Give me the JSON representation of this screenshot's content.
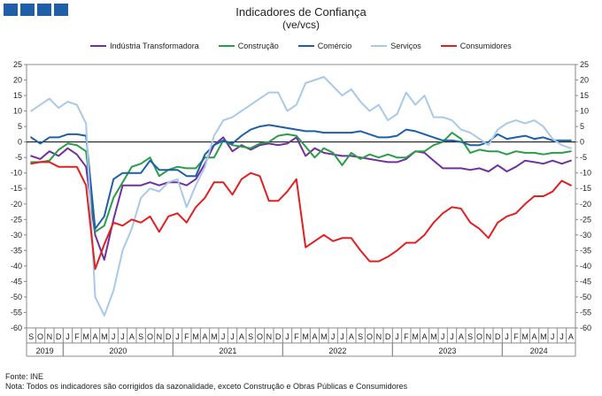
{
  "header": {
    "logo_icon": "ine-logo-blocks"
  },
  "chart_data": {
    "type": "line",
    "title": "Indicadores de Confiança",
    "subtitle": "(ve/vcs)",
    "ylim": [
      -60,
      25
    ],
    "yticks": [
      25,
      20,
      15,
      10,
      5,
      0,
      -5,
      -10,
      -15,
      -20,
      -25,
      -30,
      -35,
      -40,
      -45,
      -50,
      -55,
      -60
    ],
    "month_labels": [
      "S",
      "O",
      "N",
      "D",
      "J",
      "F",
      "M",
      "A",
      "M",
      "J",
      "J",
      "A",
      "S",
      "O",
      "N",
      "D",
      "J",
      "F",
      "M",
      "A",
      "M",
      "J",
      "J",
      "A",
      "S",
      "O",
      "N",
      "D",
      "J",
      "F",
      "M",
      "A",
      "M",
      "J",
      "J",
      "A",
      "S",
      "O",
      "N",
      "D",
      "J",
      "F",
      "M",
      "A",
      "M",
      "J",
      "J",
      "A",
      "S",
      "O",
      "N",
      "D",
      "J",
      "F",
      "M",
      "A",
      "M",
      "J",
      "J",
      "A"
    ],
    "years": [
      {
        "label": "2019",
        "start": 0,
        "count": 4
      },
      {
        "label": "2020",
        "start": 4,
        "count": 12
      },
      {
        "label": "2021",
        "start": 16,
        "count": 12
      },
      {
        "label": "2022",
        "start": 28,
        "count": 12
      },
      {
        "label": "2023",
        "start": 40,
        "count": 12
      },
      {
        "label": "2024",
        "start": 52,
        "count": 8
      }
    ],
    "series": [
      {
        "name": "Indústria Transformadora",
        "color": "#7030a0",
        "values": [
          -4.5,
          -5.5,
          -3,
          -4.5,
          -2,
          -4,
          -8,
          -30,
          -38,
          -25,
          -14,
          -14,
          -14,
          -13,
          -14,
          -13,
          -13,
          -14,
          -12,
          -7,
          -1,
          1.5,
          -3,
          -1,
          -2.5,
          -1,
          -0.5,
          -1,
          -0.5,
          1.5,
          -4.5,
          -2,
          -3.5,
          -4,
          -4.5,
          -4.5,
          -5,
          -5.5,
          -6,
          -6.5,
          -6.5,
          -5.5,
          -3,
          -3.5,
          -6,
          -8.5,
          -8.5,
          -8.5,
          -9,
          -8.5,
          -9.5,
          -7.5,
          -9.5,
          -8,
          -6,
          -6.5,
          -7,
          -6,
          -7,
          -6
        ]
      },
      {
        "name": "Construção",
        "color": "#2a9d48",
        "values": [
          -6.5,
          -6.5,
          -6,
          -2.5,
          -0.5,
          -1,
          -3,
          -29,
          -27,
          -18,
          -13,
          -8,
          -7,
          -5,
          -11,
          -9,
          -8,
          -8.5,
          -8.5,
          -5,
          -5,
          0.5,
          -1,
          -1.5,
          -2,
          -0.5,
          0,
          2,
          2.5,
          2,
          -1.5,
          -5,
          -2,
          -3.5,
          -7.5,
          -3.5,
          -5.5,
          -4,
          -5,
          -4,
          -5,
          -5,
          -3,
          -3,
          -1,
          0,
          3,
          1,
          -3.5,
          -2.5,
          -3,
          -3,
          -4,
          -3,
          -3.5,
          -3.5,
          -4,
          -3.5,
          -3.5,
          -3
        ]
      },
      {
        "name": "Comércio",
        "color": "#1f5fa8",
        "values": [
          1.5,
          -0.5,
          1.5,
          1.5,
          2.5,
          2.5,
          2,
          -28,
          -24,
          -12,
          -10,
          -10,
          -10,
          -6,
          -9,
          -9,
          -9,
          -11,
          -11,
          -4,
          -1,
          0.5,
          -0.5,
          2,
          4,
          5,
          5.5,
          5,
          4.5,
          4,
          3.5,
          3.5,
          3,
          3,
          3,
          3,
          3.5,
          2.5,
          1.5,
          1.5,
          2,
          4,
          3.5,
          2.5,
          1.5,
          0.5,
          0.5,
          0,
          -1,
          -1,
          0,
          2.5,
          1,
          1.5,
          2,
          1,
          1.5,
          0.5,
          0.5,
          0.5
        ]
      },
      {
        "name": "Serviços",
        "color": "#a9c9e8",
        "values": [
          10,
          12,
          14,
          11,
          13,
          12,
          6,
          -50,
          -56,
          -48,
          -35,
          -28,
          -18,
          -15,
          -16,
          -13,
          -12,
          -21,
          -14,
          -8,
          2,
          7,
          8,
          10,
          12,
          14,
          16,
          16,
          10,
          12,
          19,
          20,
          21,
          18,
          15,
          17,
          13,
          10,
          12,
          7,
          9,
          16,
          12,
          15,
          8,
          8,
          7,
          4,
          3,
          1,
          -1,
          4,
          6,
          7,
          6,
          7,
          5,
          1,
          -1,
          -2
        ]
      },
      {
        "name": "Consumidores",
        "color": "#e02020",
        "values": [
          -7,
          -6.5,
          -6.5,
          -8,
          -8,
          -8,
          -14,
          -41,
          -33,
          -26,
          -27,
          -25,
          -26,
          -24,
          -29,
          -24,
          -23,
          -26,
          -21,
          -18,
          -13,
          -13,
          -17,
          -12,
          -10,
          -11,
          -19,
          -19,
          -16,
          -12,
          -34,
          -32,
          -30,
          -32,
          -31,
          -31,
          -35,
          -38.5,
          -38.5,
          -37,
          -35,
          -32.5,
          -32.5,
          -30,
          -26,
          -23,
          -21,
          -21.5,
          -26,
          -28,
          -31,
          -26,
          -24,
          -23,
          -20,
          -17.5,
          -17.5,
          -16,
          -12.5,
          -14
        ]
      }
    ]
  },
  "footer": {
    "source": "Fonte: INE",
    "note": "Nota: Todos os indicadores são corrigidos da sazonalidade, exceto Construção e Obras Públicas e Consumidores"
  }
}
